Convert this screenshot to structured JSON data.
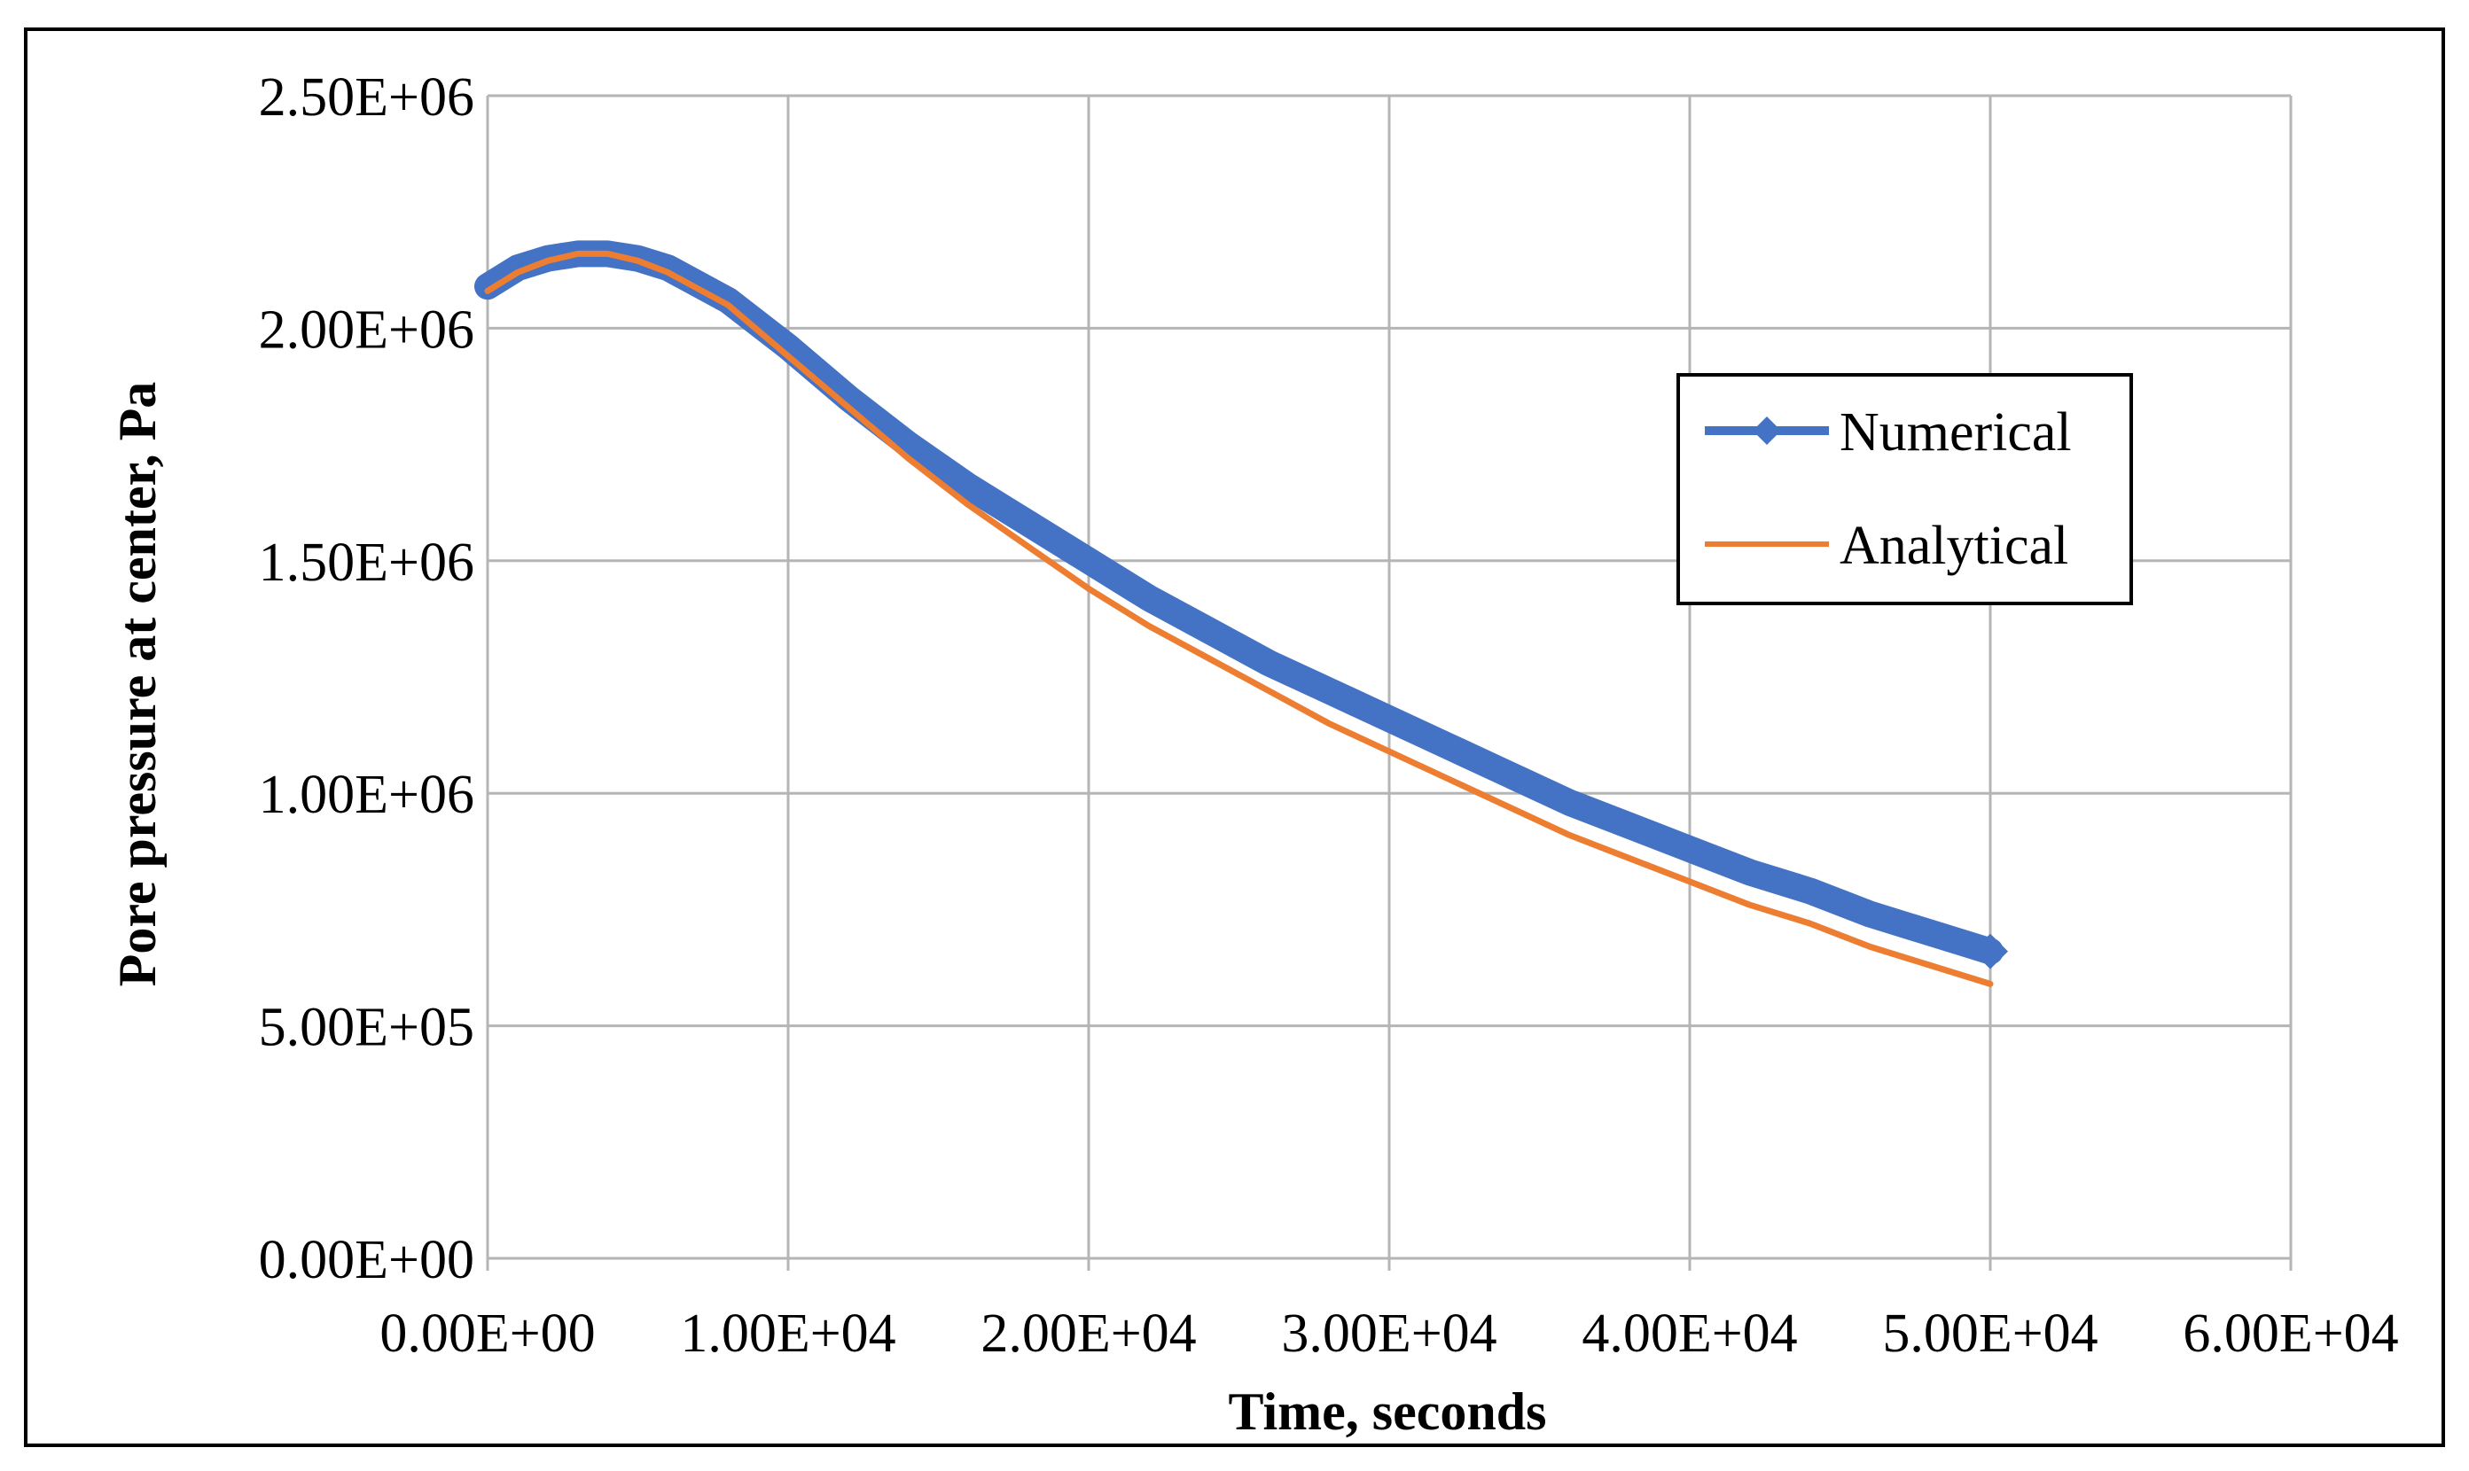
{
  "chart_data": {
    "type": "line",
    "title": "",
    "xlabel": "Time, seconds",
    "ylabel": "Pore pressure at center, Pa",
    "xlim": [
      0,
      60000
    ],
    "ylim": [
      0,
      2500000
    ],
    "x_ticks": [
      0,
      10000,
      20000,
      30000,
      40000,
      50000,
      60000
    ],
    "y_ticks": [
      0,
      500000,
      1000000,
      1500000,
      2000000,
      2500000
    ],
    "x_tick_labels": [
      "0.00E+00",
      "1.00E+04",
      "2.00E+04",
      "3.00E+04",
      "4.00E+04",
      "5.00E+04",
      "6.00E+04"
    ],
    "y_tick_labels": [
      "0.00E+00",
      "5.00E+05",
      "1.00E+06",
      "1.50E+06",
      "2.00E+06",
      "2.50E+06"
    ],
    "grid": true,
    "legend_position": "right",
    "x": [
      0,
      1000,
      2000,
      3000,
      4000,
      5000,
      6000,
      8000,
      10000,
      12000,
      14000,
      16000,
      18000,
      20000,
      22000,
      24000,
      26000,
      28000,
      30000,
      32000,
      34000,
      36000,
      38000,
      40000,
      42000,
      44000,
      46000,
      48000,
      50000
    ],
    "series": [
      {
        "name": "Numerical",
        "color": "#4472C4",
        "marker": "diamond",
        "values": [
          2090000,
          2130000,
          2150000,
          2160000,
          2160000,
          2150000,
          2130000,
          2060000,
          1960000,
          1850000,
          1750000,
          1660000,
          1580000,
          1500000,
          1420000,
          1350000,
          1280000,
          1220000,
          1160000,
          1100000,
          1040000,
          980000,
          930000,
          880000,
          830000,
          790000,
          740000,
          700000,
          660000
        ]
      },
      {
        "name": "Analytical",
        "color": "#ED7D31",
        "marker": "none",
        "values": [
          2080000,
          2120000,
          2145000,
          2160000,
          2160000,
          2145000,
          2120000,
          2050000,
          1940000,
          1830000,
          1720000,
          1620000,
          1530000,
          1440000,
          1360000,
          1290000,
          1220000,
          1150000,
          1090000,
          1030000,
          970000,
          910000,
          860000,
          810000,
          760000,
          720000,
          670000,
          630000,
          590000
        ]
      }
    ]
  }
}
